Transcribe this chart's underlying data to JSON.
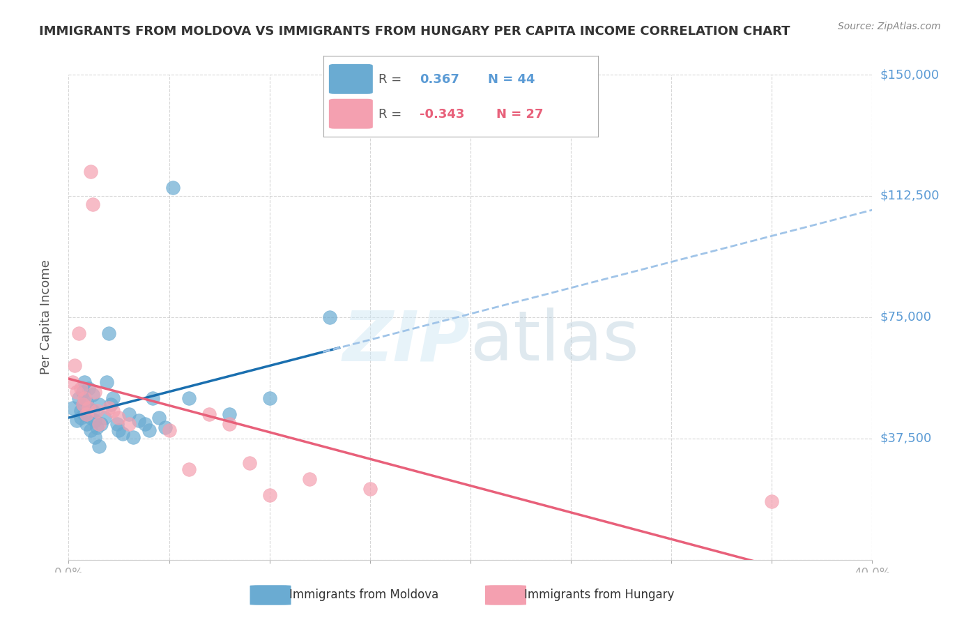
{
  "title": "IMMIGRANTS FROM MOLDOVA VS IMMIGRANTS FROM HUNGARY PER CAPITA INCOME CORRELATION CHART",
  "source": "Source: ZipAtlas.com",
  "xlabel": "",
  "ylabel": "Per Capita Income",
  "xlim": [
    0.0,
    0.4
  ],
  "ylim": [
    0,
    150000
  ],
  "yticks": [
    0,
    37500,
    75000,
    112500,
    150000
  ],
  "ytick_labels": [
    "",
    "$37,500",
    "$75,000",
    "$112,500",
    "$150,000"
  ],
  "xticks": [
    0.0,
    0.05,
    0.1,
    0.15,
    0.2,
    0.25,
    0.3,
    0.35,
    0.4
  ],
  "moldova_R": 0.367,
  "moldova_N": 44,
  "hungary_R": -0.343,
  "hungary_N": 27,
  "moldova_color": "#6aabd2",
  "hungary_color": "#f4a0b0",
  "moldova_line_color": "#1a6faf",
  "hungary_line_color": "#e8607a",
  "trend_line_dashed_color": "#a0c4e8",
  "background_color": "#ffffff",
  "moldova_x": [
    0.002,
    0.004,
    0.005,
    0.006,
    0.006,
    0.007,
    0.007,
    0.008,
    0.008,
    0.009,
    0.009,
    0.01,
    0.01,
    0.011,
    0.011,
    0.012,
    0.012,
    0.013,
    0.013,
    0.014,
    0.015,
    0.015,
    0.016,
    0.018,
    0.019,
    0.02,
    0.021,
    0.022,
    0.024,
    0.025,
    0.027,
    0.03,
    0.032,
    0.035,
    0.038,
    0.04,
    0.042,
    0.045,
    0.048,
    0.052,
    0.06,
    0.08,
    0.1,
    0.13
  ],
  "moldova_y": [
    47000,
    43000,
    50000,
    44000,
    46000,
    52000,
    48000,
    55000,
    45000,
    42000,
    49000,
    53000,
    47000,
    44000,
    40000,
    51000,
    46000,
    43000,
    38000,
    41000,
    48000,
    35000,
    42000,
    44000,
    55000,
    70000,
    48000,
    50000,
    42000,
    40000,
    39000,
    45000,
    38000,
    43000,
    42000,
    40000,
    50000,
    44000,
    41000,
    115000,
    50000,
    45000,
    50000,
    75000
  ],
  "hungary_x": [
    0.002,
    0.003,
    0.004,
    0.005,
    0.006,
    0.007,
    0.008,
    0.009,
    0.01,
    0.011,
    0.012,
    0.013,
    0.014,
    0.015,
    0.02,
    0.022,
    0.025,
    0.03,
    0.05,
    0.06,
    0.07,
    0.08,
    0.09,
    0.1,
    0.12,
    0.15,
    0.35
  ],
  "hungary_y": [
    55000,
    60000,
    52000,
    70000,
    53000,
    48000,
    50000,
    45000,
    47000,
    120000,
    110000,
    52000,
    46000,
    42000,
    47000,
    46000,
    44000,
    42000,
    40000,
    28000,
    45000,
    42000,
    30000,
    20000,
    25000,
    22000,
    18000
  ]
}
